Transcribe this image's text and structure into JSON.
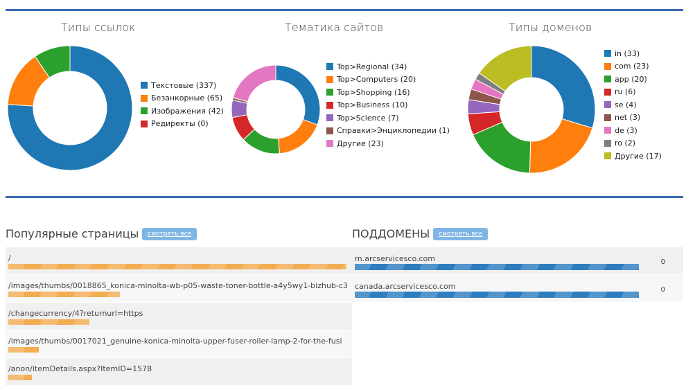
{
  "charts": [
    {
      "title": "Типы ссылок",
      "legend": [
        {
          "label": "Текстовые (337)",
          "value": 337,
          "color": "#1f77b4"
        },
        {
          "label": "Безанкорные (65)",
          "value": 65,
          "color": "#ff7f0e"
        },
        {
          "label": "Изображения (42)",
          "value": 42,
          "color": "#2ca02c"
        },
        {
          "label": "Редиректы (0)",
          "value": 0,
          "color": "#d62728"
        }
      ]
    },
    {
      "title": "Тематика сайтов",
      "legend": [
        {
          "label": "Top>Regional (34)",
          "value": 34,
          "color": "#1f77b4"
        },
        {
          "label": "Top>Computers (20)",
          "value": 20,
          "color": "#ff7f0e"
        },
        {
          "label": "Top>Shopping (16)",
          "value": 16,
          "color": "#2ca02c"
        },
        {
          "label": "Top>Business (10)",
          "value": 10,
          "color": "#d62728"
        },
        {
          "label": "Top>Science (7)",
          "value": 7,
          "color": "#9467bd"
        },
        {
          "label": "Справки>Энциклопедии (1)",
          "value": 1,
          "color": "#8c564b"
        },
        {
          "label": "Другие (23)",
          "value": 23,
          "color": "#e377c2"
        }
      ]
    },
    {
      "title": "Типы доменов",
      "legend": [
        {
          "label": "in (33)",
          "value": 33,
          "color": "#1f77b4"
        },
        {
          "label": "com (23)",
          "value": 23,
          "color": "#ff7f0e"
        },
        {
          "label": "app (20)",
          "value": 20,
          "color": "#2ca02c"
        },
        {
          "label": "ru (6)",
          "value": 6,
          "color": "#d62728"
        },
        {
          "label": "se (4)",
          "value": 4,
          "color": "#9467bd"
        },
        {
          "label": "net (3)",
          "value": 3,
          "color": "#8c564b"
        },
        {
          "label": "de (3)",
          "value": 3,
          "color": "#e377c2"
        },
        {
          "label": "ro (2)",
          "value": 2,
          "color": "#7f7f7f"
        },
        {
          "label": "Другие (17)",
          "value": 17,
          "color": "#bcbd22"
        }
      ]
    }
  ],
  "popular_pages": {
    "title": "Популярные страницы",
    "see_all": "смотреть все",
    "rows": [
      {
        "path": "/",
        "share": 1.0
      },
      {
        "path": "/images/thumbs/0018865_konica-minolta-wb-p05-waste-toner-bottle-a4y5wy1-bizhub-c3",
        "share": 0.33
      },
      {
        "path": "/changecurrency/4?returnurl=https",
        "share": 0.24
      },
      {
        "path": "/images/thumbs/0017021_genuine-konica-minolta-upper-fuser-roller-lamp-2-for-the-fusi",
        "share": 0.09
      },
      {
        "path": "/anon/itemDetails.aspx?ItemID=1578",
        "share": 0.07
      }
    ]
  },
  "subdomains": {
    "title": "ПОДДОМЕНЫ",
    "see_all": "смотреть все",
    "rows": [
      {
        "name": "m.arcservicesco.com",
        "share": 1.0,
        "count": "0"
      },
      {
        "name": "canada.arcservicesco.com",
        "share": 1.0,
        "count": "0"
      }
    ]
  }
}
